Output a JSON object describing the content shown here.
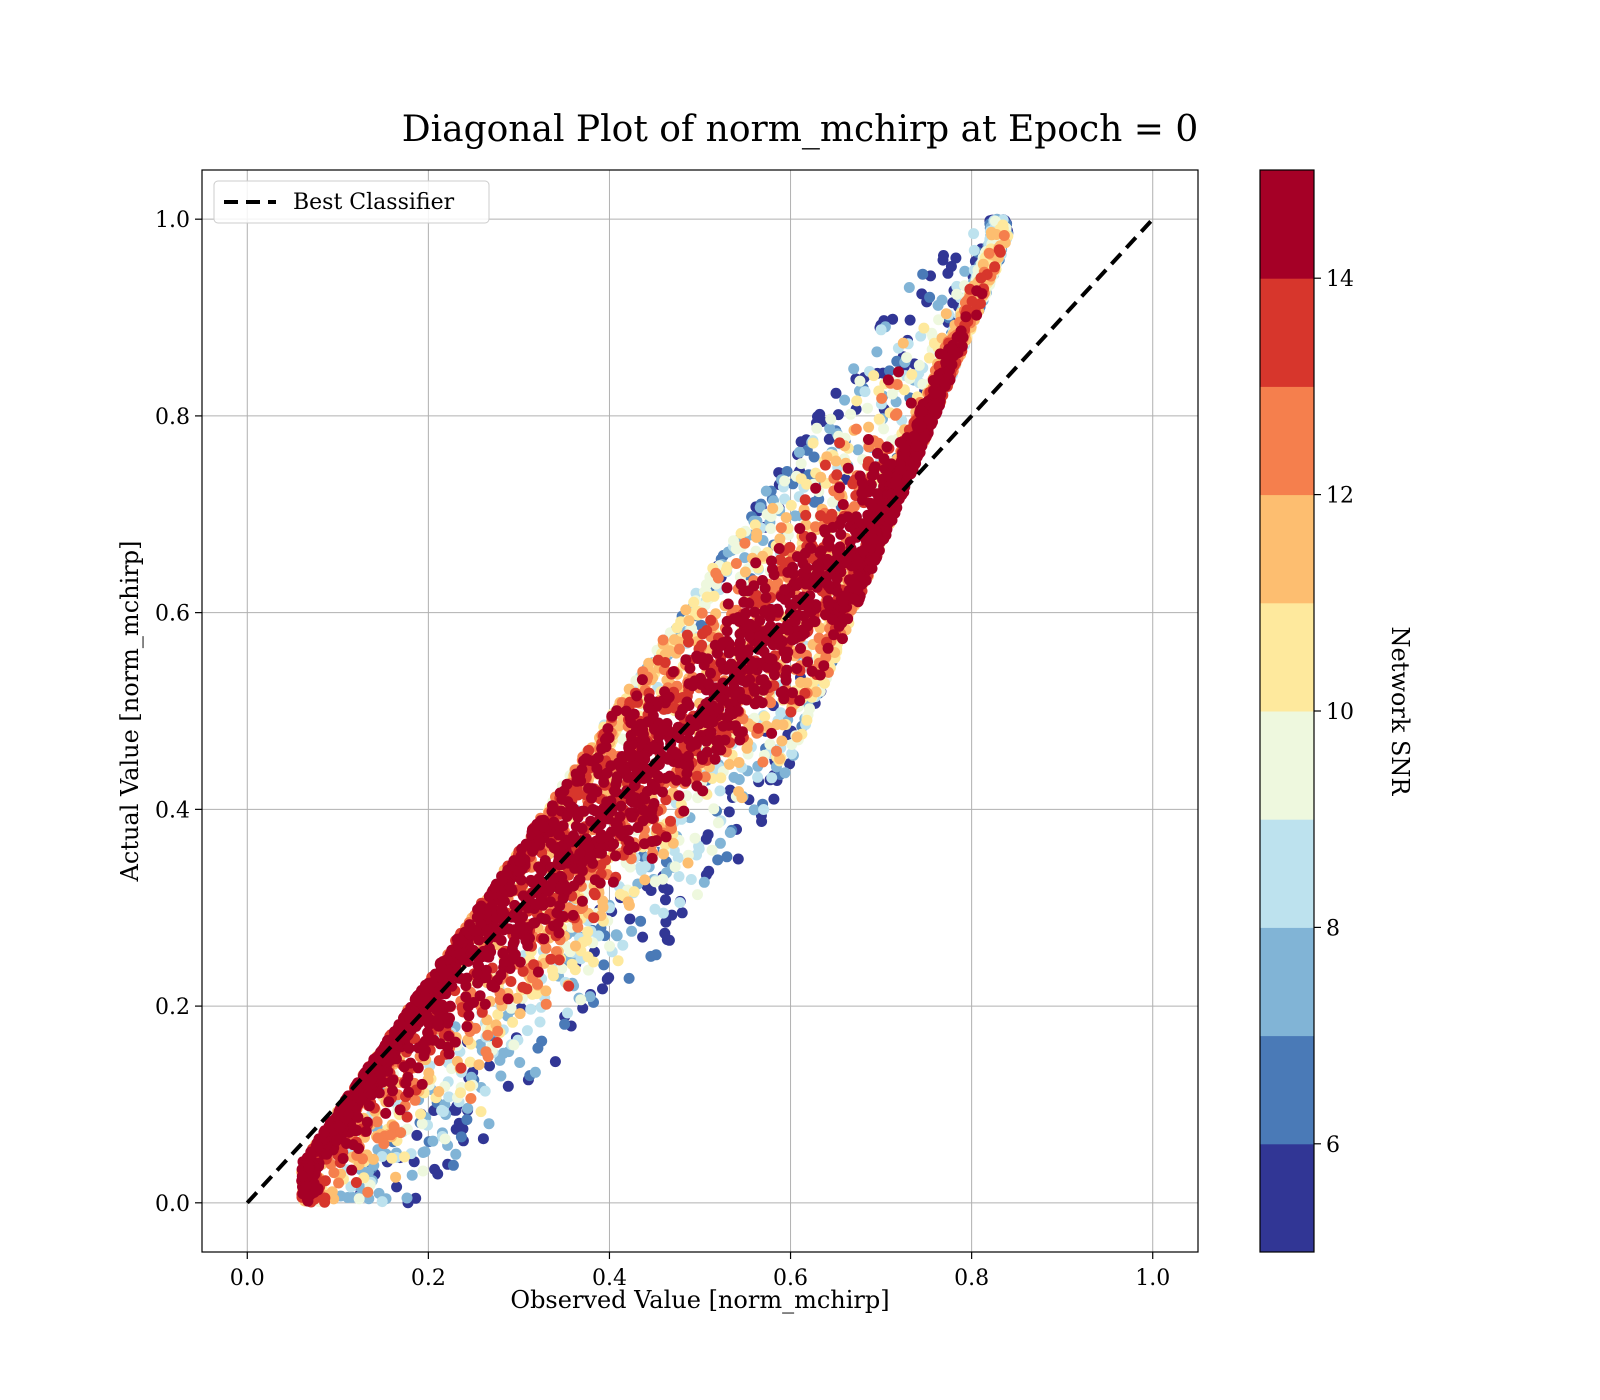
{
  "chart_data": {
    "type": "scatter",
    "title": "Diagonal Plot of norm_mchirp at Epoch = 0",
    "xlabel": "Observed Value [norm_mchirp]",
    "ylabel": "Actual Value [norm_mchirp]",
    "xlim": [
      -0.05,
      1.05
    ],
    "ylim": [
      -0.05,
      1.05
    ],
    "x_ticks": [
      "0.0",
      "0.2",
      "0.4",
      "0.6",
      "0.8",
      "1.0"
    ],
    "y_ticks": [
      "0.0",
      "0.2",
      "0.4",
      "0.6",
      "0.8",
      "1.0"
    ],
    "grid": true,
    "legend": {
      "position": "top-left",
      "entries": [
        "Best Classifier"
      ]
    },
    "reference_line": {
      "name": "Best Classifier",
      "x": [
        0,
        1
      ],
      "y": [
        0,
        1
      ],
      "style": "dashed",
      "color": "#000000"
    },
    "colorbar": {
      "title": "Network SNR",
      "min": 5,
      "max": 15,
      "ticks": [
        "6",
        "8",
        "10",
        "12",
        "14"
      ],
      "bins": [
        {
          "from": 5,
          "to": 6,
          "color": "#313695"
        },
        {
          "from": 6,
          "to": 7,
          "color": "#4a7ab7"
        },
        {
          "from": 7,
          "to": 8,
          "color": "#81b4d6"
        },
        {
          "from": 8,
          "to": 9,
          "color": "#bde2ee"
        },
        {
          "from": 9,
          "to": 10,
          "color": "#eef8de"
        },
        {
          "from": 10,
          "to": 11,
          "color": "#fee99d"
        },
        {
          "from": 11,
          "to": 12,
          "color": "#fdbe70"
        },
        {
          "from": 12,
          "to": 13,
          "color": "#f57f4d"
        },
        {
          "from": 13,
          "to": 14,
          "color": "#d7362c"
        },
        {
          "from": 14,
          "to": 15,
          "color": "#a50026"
        }
      ]
    },
    "scatter_model": {
      "description_of_distribution": "dense band of points around the diagonal y = x, spread roughly +/-0.2 in x; high SNR near diagonal, lower SNR further away",
      "point_count": 6000,
      "x_range": [
        0.06,
        0.84
      ],
      "y_range": [
        0.0,
        1.0
      ],
      "band_halfwidth": 0.2
    }
  }
}
